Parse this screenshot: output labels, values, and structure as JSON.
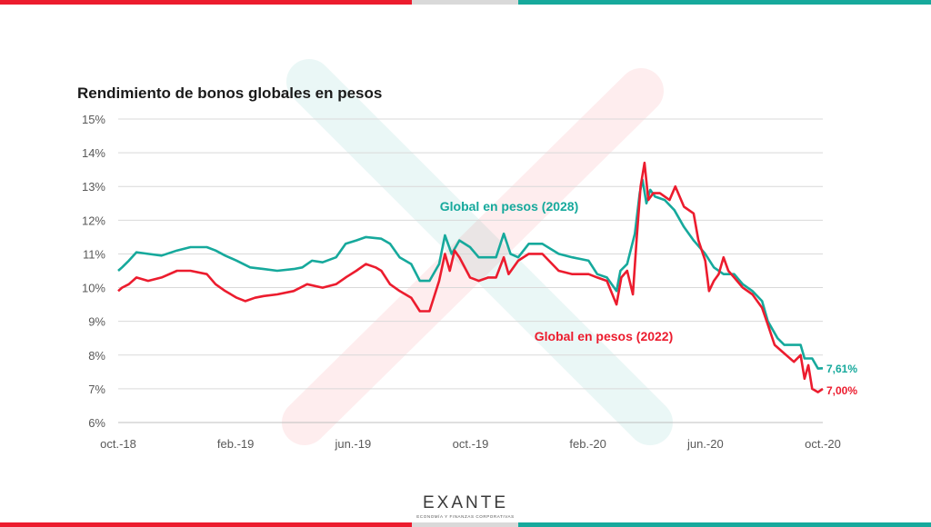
{
  "colors": {
    "red": "#ec1c2e",
    "teal": "#16a99c",
    "gray_band": "#d9d9d9",
    "watermark_red": "#ef3a3f",
    "watermark_teal": "#1aa89b"
  },
  "logo": {
    "name": "EXANTE",
    "tagline": "ECONOMÍA Y FINANZAS CORPORATIVAS"
  },
  "chart_data": {
    "type": "line",
    "title": "Rendimiento de bonos globales en pesos",
    "x_ticks": [
      "oct.-18",
      "feb.-19",
      "jun.-19",
      "oct.-19",
      "feb.-20",
      "jun.-20",
      "oct.-20"
    ],
    "y_ticks": [
      "15%",
      "14%",
      "13%",
      "12%",
      "11%",
      "10%",
      "9%",
      "8%",
      "7%",
      "6%"
    ],
    "ylim": [
      6,
      15
    ],
    "xlim": [
      "2018-10-01",
      "2020-10-01"
    ],
    "grid": true,
    "series": [
      {
        "name": "Global en pesos (2028)",
        "color": "#16a99c",
        "end_label": "7,61%",
        "points": [
          [
            "2018-10-01",
            10.5
          ],
          [
            "2018-10-05",
            10.6
          ],
          [
            "2018-10-12",
            10.8
          ],
          [
            "2018-10-20",
            11.05
          ],
          [
            "2018-11-01",
            11.0
          ],
          [
            "2018-11-15",
            10.95
          ],
          [
            "2018-12-01",
            11.1
          ],
          [
            "2018-12-15",
            11.2
          ],
          [
            "2019-01-01",
            11.2
          ],
          [
            "2019-01-10",
            11.1
          ],
          [
            "2019-01-20",
            10.95
          ],
          [
            "2019-02-01",
            10.8
          ],
          [
            "2019-02-15",
            10.6
          ],
          [
            "2019-03-01",
            10.55
          ],
          [
            "2019-03-15",
            10.5
          ],
          [
            "2019-04-01",
            10.55
          ],
          [
            "2019-04-10",
            10.6
          ],
          [
            "2019-04-20",
            10.8
          ],
          [
            "2019-05-01",
            10.75
          ],
          [
            "2019-05-15",
            10.9
          ],
          [
            "2019-05-25",
            11.3
          ],
          [
            "2019-06-05",
            11.4
          ],
          [
            "2019-06-15",
            11.5
          ],
          [
            "2019-07-01",
            11.45
          ],
          [
            "2019-07-10",
            11.3
          ],
          [
            "2019-07-20",
            10.9
          ],
          [
            "2019-08-01",
            10.7
          ],
          [
            "2019-08-10",
            10.2
          ],
          [
            "2019-08-20",
            10.2
          ],
          [
            "2019-08-30",
            10.7
          ],
          [
            "2019-09-05",
            11.55
          ],
          [
            "2019-09-12",
            11.0
          ],
          [
            "2019-09-20",
            11.4
          ],
          [
            "2019-10-01",
            11.2
          ],
          [
            "2019-10-10",
            10.9
          ],
          [
            "2019-10-20",
            10.9
          ],
          [
            "2019-10-28",
            10.9
          ],
          [
            "2019-11-05",
            11.6
          ],
          [
            "2019-11-12",
            11.0
          ],
          [
            "2019-11-20",
            10.9
          ],
          [
            "2019-12-01",
            11.3
          ],
          [
            "2019-12-15",
            11.3
          ],
          [
            "2020-01-01",
            11.0
          ],
          [
            "2020-01-15",
            10.9
          ],
          [
            "2020-02-01",
            10.8
          ],
          [
            "2020-02-10",
            10.4
          ],
          [
            "2020-02-20",
            10.3
          ],
          [
            "2020-03-01",
            9.9
          ],
          [
            "2020-03-05",
            10.5
          ],
          [
            "2020-03-12",
            10.7
          ],
          [
            "2020-03-20",
            11.6
          ],
          [
            "2020-03-25",
            12.8
          ],
          [
            "2020-03-28",
            13.2
          ],
          [
            "2020-04-01",
            12.5
          ],
          [
            "2020-04-05",
            12.9
          ],
          [
            "2020-04-10",
            12.7
          ],
          [
            "2020-04-20",
            12.6
          ],
          [
            "2020-04-30",
            12.3
          ],
          [
            "2020-05-10",
            11.8
          ],
          [
            "2020-05-20",
            11.4
          ],
          [
            "2020-06-01",
            11.0
          ],
          [
            "2020-06-10",
            10.6
          ],
          [
            "2020-06-20",
            10.4
          ],
          [
            "2020-07-01",
            10.4
          ],
          [
            "2020-07-10",
            10.1
          ],
          [
            "2020-07-20",
            9.9
          ],
          [
            "2020-07-30",
            9.6
          ],
          [
            "2020-08-05",
            9.0
          ],
          [
            "2020-08-15",
            8.5
          ],
          [
            "2020-08-22",
            8.3
          ],
          [
            "2020-09-01",
            8.3
          ],
          [
            "2020-09-08",
            8.3
          ],
          [
            "2020-09-12",
            7.9
          ],
          [
            "2020-09-20",
            7.9
          ],
          [
            "2020-09-26",
            7.6
          ],
          [
            "2020-10-01",
            7.61
          ]
        ]
      },
      {
        "name": "Global en pesos (2022)",
        "color": "#ec1c2e",
        "end_label": "7,00%",
        "points": [
          [
            "2018-10-01",
            9.9
          ],
          [
            "2018-10-05",
            10.0
          ],
          [
            "2018-10-12",
            10.1
          ],
          [
            "2018-10-20",
            10.3
          ],
          [
            "2018-11-01",
            10.2
          ],
          [
            "2018-11-15",
            10.3
          ],
          [
            "2018-12-01",
            10.5
          ],
          [
            "2018-12-15",
            10.5
          ],
          [
            "2019-01-01",
            10.4
          ],
          [
            "2019-01-10",
            10.1
          ],
          [
            "2019-01-20",
            9.9
          ],
          [
            "2019-02-01",
            9.7
          ],
          [
            "2019-02-10",
            9.6
          ],
          [
            "2019-02-20",
            9.7
          ],
          [
            "2019-03-01",
            9.75
          ],
          [
            "2019-03-15",
            9.8
          ],
          [
            "2019-04-01",
            9.9
          ],
          [
            "2019-04-15",
            10.1
          ],
          [
            "2019-05-01",
            10.0
          ],
          [
            "2019-05-15",
            10.1
          ],
          [
            "2019-05-25",
            10.3
          ],
          [
            "2019-06-05",
            10.5
          ],
          [
            "2019-06-15",
            10.7
          ],
          [
            "2019-06-25",
            10.6
          ],
          [
            "2019-07-01",
            10.5
          ],
          [
            "2019-07-10",
            10.1
          ],
          [
            "2019-07-20",
            9.9
          ],
          [
            "2019-08-01",
            9.7
          ],
          [
            "2019-08-10",
            9.3
          ],
          [
            "2019-08-20",
            9.3
          ],
          [
            "2019-08-30",
            10.2
          ],
          [
            "2019-09-05",
            11.0
          ],
          [
            "2019-09-10",
            10.5
          ],
          [
            "2019-09-15",
            11.1
          ],
          [
            "2019-09-20",
            10.9
          ],
          [
            "2019-10-01",
            10.3
          ],
          [
            "2019-10-10",
            10.2
          ],
          [
            "2019-10-20",
            10.3
          ],
          [
            "2019-10-28",
            10.3
          ],
          [
            "2019-11-05",
            10.9
          ],
          [
            "2019-11-10",
            10.4
          ],
          [
            "2019-11-20",
            10.8
          ],
          [
            "2019-12-01",
            11.0
          ],
          [
            "2019-12-15",
            11.0
          ],
          [
            "2020-01-01",
            10.5
          ],
          [
            "2020-01-15",
            10.4
          ],
          [
            "2020-02-01",
            10.4
          ],
          [
            "2020-02-10",
            10.3
          ],
          [
            "2020-02-20",
            10.2
          ],
          [
            "2020-03-01",
            9.5
          ],
          [
            "2020-03-06",
            10.3
          ],
          [
            "2020-03-12",
            10.5
          ],
          [
            "2020-03-18",
            9.8
          ],
          [
            "2020-03-22",
            11.5
          ],
          [
            "2020-03-26",
            13.0
          ],
          [
            "2020-03-30",
            13.7
          ],
          [
            "2020-04-03",
            12.6
          ],
          [
            "2020-04-08",
            12.8
          ],
          [
            "2020-04-15",
            12.8
          ],
          [
            "2020-04-25",
            12.6
          ],
          [
            "2020-05-01",
            13.0
          ],
          [
            "2020-05-10",
            12.4
          ],
          [
            "2020-05-20",
            12.2
          ],
          [
            "2020-05-25",
            11.4
          ],
          [
            "2020-06-01",
            10.8
          ],
          [
            "2020-06-05",
            9.9
          ],
          [
            "2020-06-10",
            10.2
          ],
          [
            "2020-06-15",
            10.4
          ],
          [
            "2020-06-20",
            10.9
          ],
          [
            "2020-06-25",
            10.5
          ],
          [
            "2020-07-01",
            10.3
          ],
          [
            "2020-07-10",
            10.0
          ],
          [
            "2020-07-20",
            9.8
          ],
          [
            "2020-07-30",
            9.4
          ],
          [
            "2020-08-05",
            8.9
          ],
          [
            "2020-08-12",
            8.3
          ],
          [
            "2020-08-20",
            8.1
          ],
          [
            "2020-09-01",
            7.8
          ],
          [
            "2020-09-08",
            8.0
          ],
          [
            "2020-09-12",
            7.3
          ],
          [
            "2020-09-16",
            7.7
          ],
          [
            "2020-09-20",
            7.0
          ],
          [
            "2020-09-26",
            6.9
          ],
          [
            "2020-10-01",
            7.0
          ]
        ]
      }
    ]
  }
}
